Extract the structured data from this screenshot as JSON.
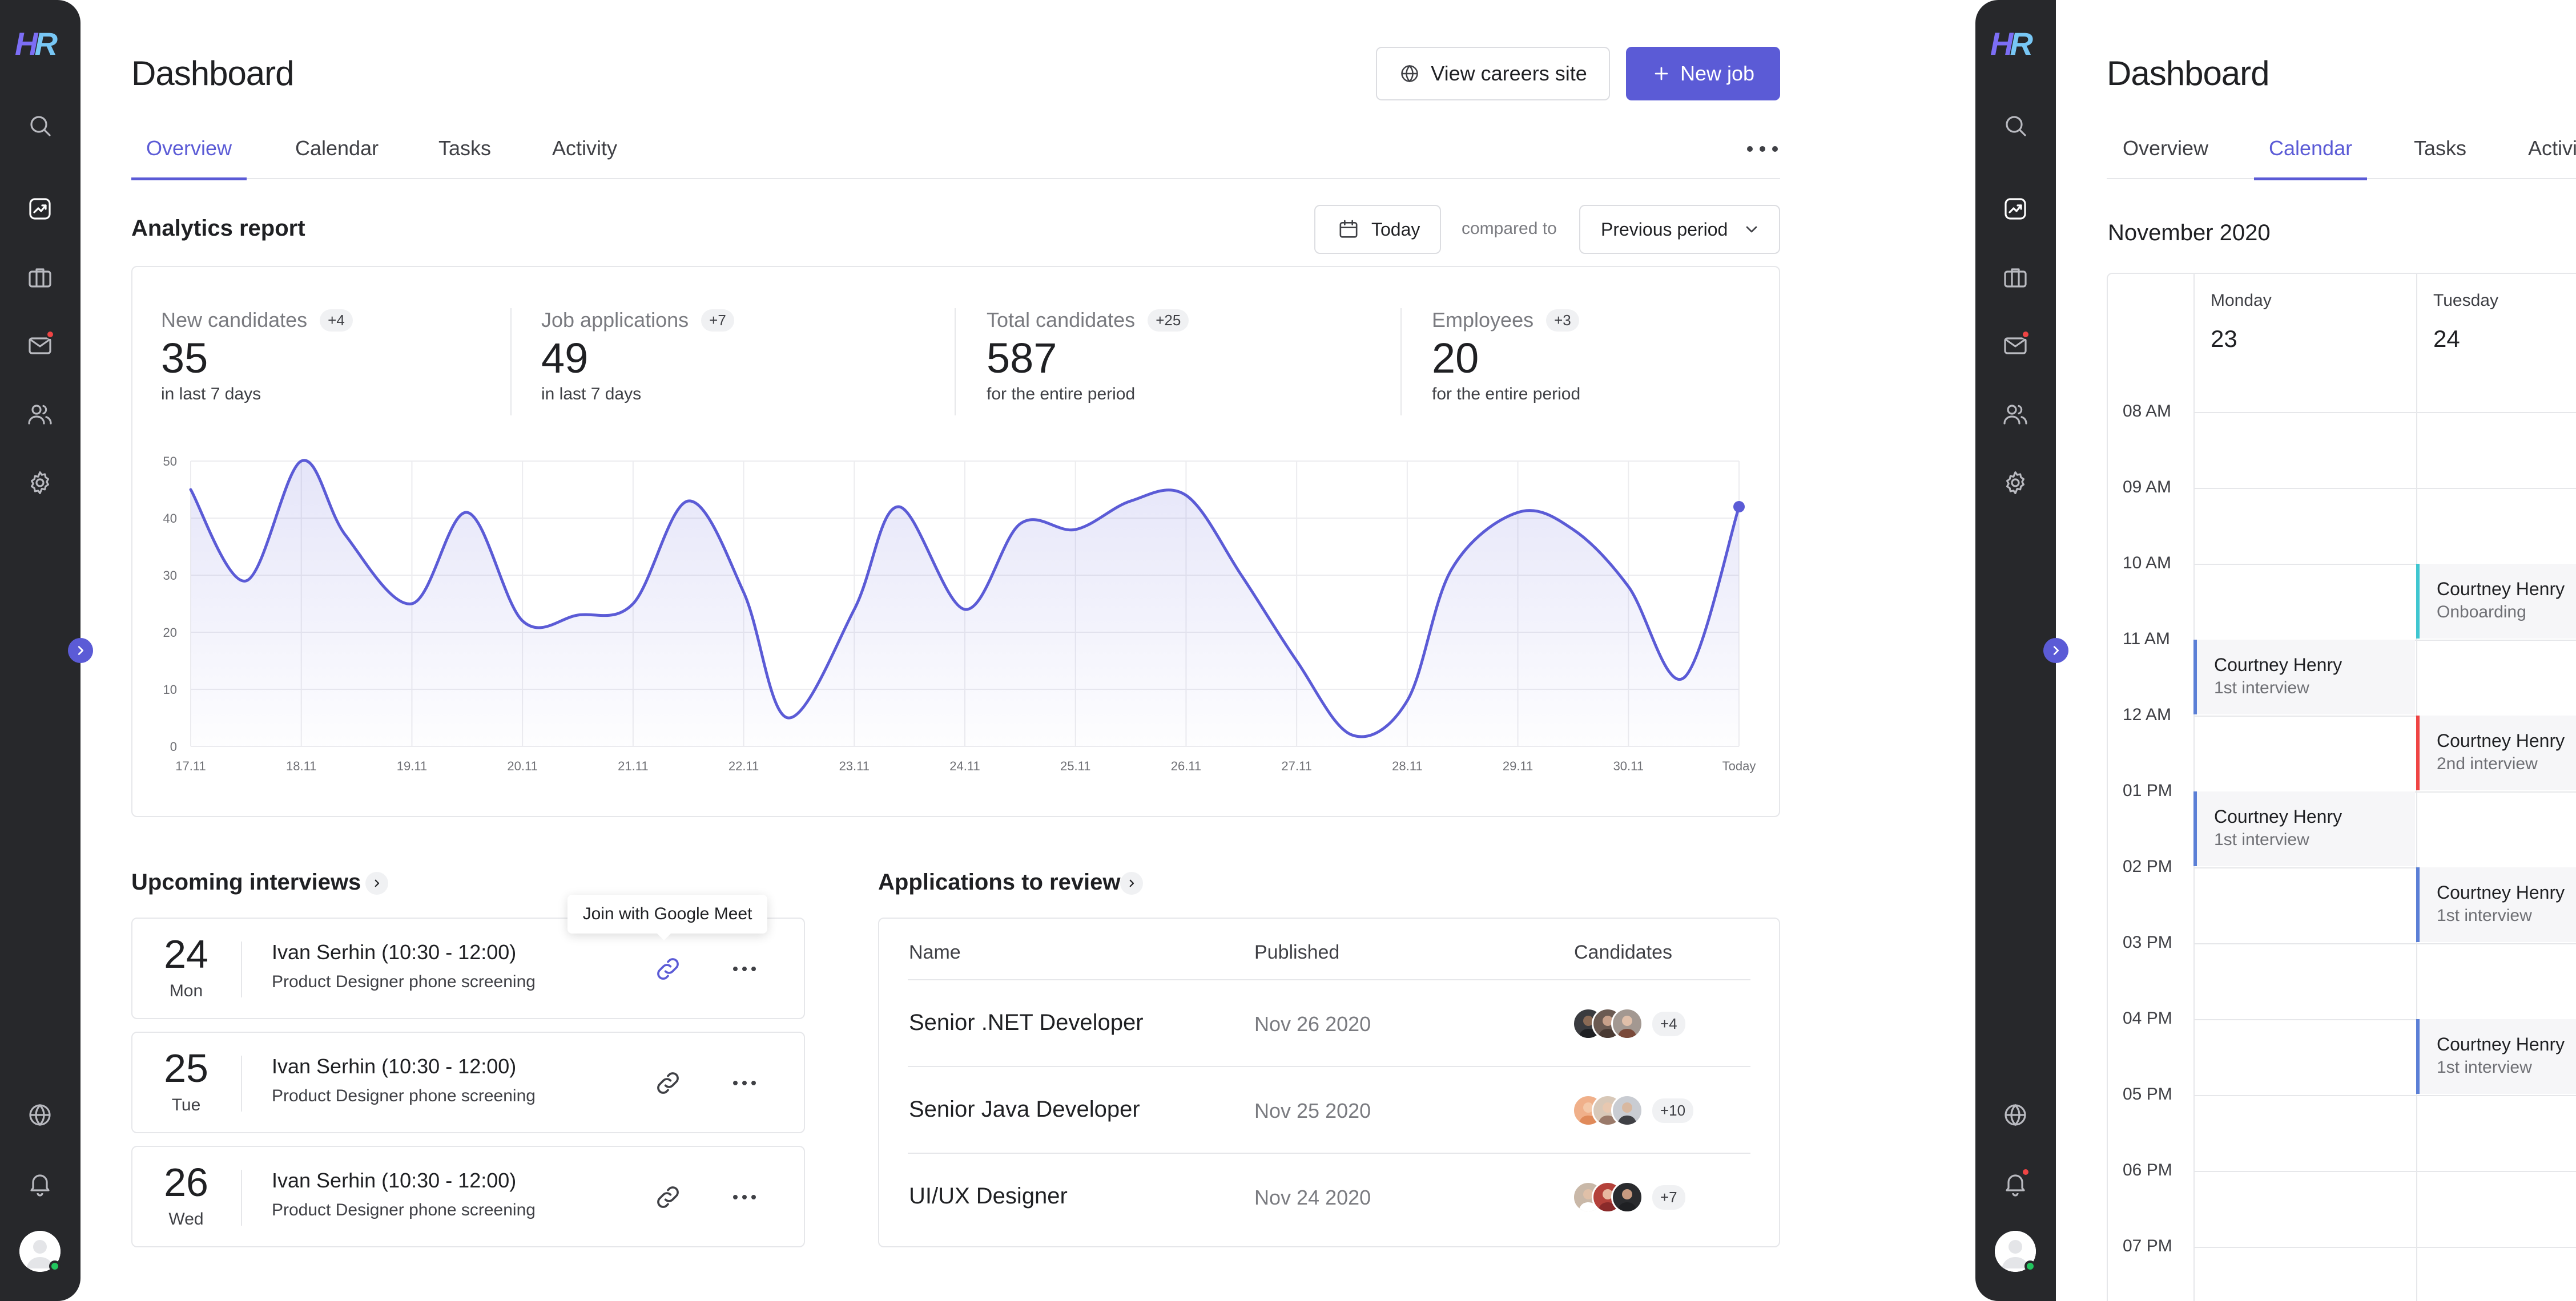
{
  "logo": {
    "h": "H",
    "r": "R"
  },
  "left": {
    "title": "Dashboard",
    "view_careers_label": "View careers site",
    "new_job_label": "New job",
    "tabs": [
      "Overview",
      "Calendar",
      "Tasks",
      "Activity"
    ],
    "active_tab": "Overview",
    "analytics": {
      "title": "Analytics report",
      "date_filter": "Today",
      "compared_to": "compared to",
      "period": "Previous period",
      "stats": [
        {
          "label": "New candidates",
          "delta": "+4",
          "value": "35",
          "sub": "in last 7 days"
        },
        {
          "label": "Job applications",
          "delta": "+7",
          "value": "49",
          "sub": "in last 7 days"
        },
        {
          "label": "Total candidates",
          "delta": "+25",
          "value": "587",
          "sub": "for the entire period"
        },
        {
          "label": "Employees",
          "delta": "+3",
          "value": "20",
          "sub": "for the entire period"
        }
      ]
    },
    "interviews": {
      "title": "Upcoming interviews",
      "tooltip": "Join with Google Meet",
      "items": [
        {
          "day": "24",
          "weekday": "Mon",
          "title": "Ivan Serhin (10:30 - 12:00)",
          "subtitle": "Product Designer phone screening"
        },
        {
          "day": "25",
          "weekday": "Tue",
          "title": "Ivan Serhin (10:30 - 12:00)",
          "subtitle": "Product Designer phone screening"
        },
        {
          "day": "26",
          "weekday": "Wed",
          "title": "Ivan Serhin (10:30 - 12:00)",
          "subtitle": "Product Designer phone screening"
        }
      ]
    },
    "applications": {
      "title": "Applications to review",
      "columns": [
        "Name",
        "Published",
        "Candidates"
      ],
      "rows": [
        {
          "name": "Senior .NET Developer",
          "published": "Nov 26 2020",
          "count": "+4"
        },
        {
          "name": "Senior Java Developer",
          "published": "Nov 25 2020",
          "count": "+10"
        },
        {
          "name": "UI/UX Designer",
          "published": "Nov 24 2020",
          "count": "+7"
        }
      ]
    }
  },
  "chart_data": {
    "type": "area",
    "categories": [
      "17.11",
      "18.11",
      "19.11",
      "20.11",
      "21.11",
      "22.11",
      "23.11",
      "24.11",
      "25.11",
      "26.11",
      "27.11",
      "28.11",
      "29.11",
      "30.11",
      "Today"
    ],
    "y_ticks": [
      "0",
      "10",
      "20",
      "30",
      "40",
      "50"
    ],
    "ylim": [
      0,
      50
    ],
    "grid": true,
    "x": [
      0,
      0.5,
      1,
      1.4,
      2,
      2.5,
      3,
      3.5,
      4,
      4.5,
      5,
      5.4,
      6,
      6.4,
      7,
      7.5,
      8,
      8.5,
      9,
      9.5,
      10,
      10.5,
      11,
      11.4,
      12,
      12.5,
      13,
      13.5,
      14
    ],
    "values": [
      45,
      29,
      50,
      37,
      25,
      41,
      22,
      23,
      25,
      43,
      27,
      5,
      24,
      42,
      24,
      39,
      38,
      43,
      44,
      30,
      15,
      2,
      8,
      31,
      41,
      38,
      28,
      12,
      42
    ],
    "line_color": "#5b5bd6"
  },
  "right": {
    "title": "Dashboard",
    "tabs": [
      "Overview",
      "Calendar",
      "Tasks",
      "Activi"
    ],
    "active_tab": "Calendar",
    "month": "November 2020",
    "days": [
      {
        "name": "Monday",
        "num": "23"
      },
      {
        "name": "Tuesday",
        "num": "24"
      }
    ],
    "hours": [
      "08 AM",
      "09 AM",
      "10 AM",
      "11 AM",
      "12 AM",
      "01 PM",
      "02 PM",
      "03 PM",
      "04 PM",
      "05 PM",
      "06 PM",
      "07 PM"
    ],
    "events": [
      {
        "name": "Courtney Henry",
        "type": "Onboarding",
        "color": "#3fc6d0"
      },
      {
        "name": "Courtney Henry",
        "type": "1st interview",
        "color": "#5b7fd6"
      },
      {
        "name": "Courtney Henry",
        "type": "2nd interview",
        "color": "#ef4444"
      },
      {
        "name": "Courtney Henry",
        "type": "1st interview",
        "color": "#5b7fd6"
      },
      {
        "name": "Courtney Henry",
        "type": "1st interview",
        "color": "#5b7fd6"
      },
      {
        "name": "Courtney Henry",
        "type": "1st interview",
        "color": "#5b7fd6"
      }
    ]
  },
  "colors": {
    "accent": "#5b5bd6",
    "sidebar": "#27282b",
    "notification": "#ef4444",
    "online": "#22c55e"
  },
  "icons": [
    "search-icon",
    "chart-icon",
    "briefcase-icon",
    "mail-icon",
    "users-icon",
    "gear-icon",
    "globe-icon",
    "bell-icon",
    "avatar",
    "link-icon",
    "calendar-icon",
    "chevron-down-icon",
    "plus-icon"
  ]
}
